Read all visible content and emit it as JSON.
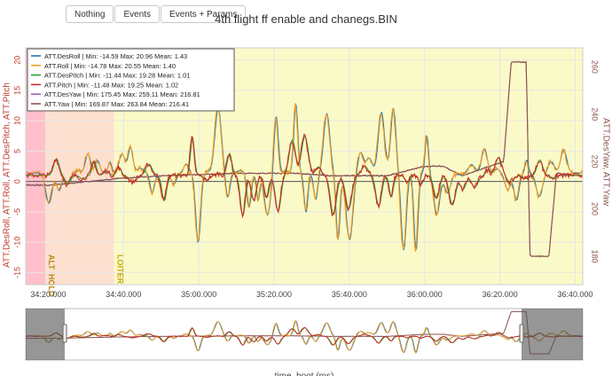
{
  "buttons": [
    "Nothing",
    "Events",
    "Events + Params"
  ],
  "chart_data": {
    "type": "line",
    "title": "4th flight ff enable and chanegs.BIN",
    "xlabel": "time_boot (ms)",
    "ylabel_left": "ATT.DesRoll, ATT.Roll, ATT.DesPitch, ATT.Pitch",
    "ylabel_right": "ATT.DesYaw, ATT.Yaw",
    "x_ticks": [
      "34:20.000",
      "34:40.000",
      "35:00.000",
      "35:20.000",
      "35:40.000",
      "36:00.000",
      "36:20.000",
      "36:40.000"
    ],
    "x_range_s": [
      2054,
      2202
    ],
    "y_left_ticks": [
      -15,
      -10,
      -5,
      0,
      5,
      10,
      15,
      20
    ],
    "y_left_range": [
      -17,
      22
    ],
    "y_right_ticks": [
      180,
      200,
      220,
      240,
      260
    ],
    "y_right_range": [
      168,
      268
    ],
    "grid": true,
    "legend_position": "top-left",
    "series": [
      {
        "name": "ATT.DesRoll | Min: -14.59    Max: 20.96    Mean: 1.43",
        "color": "#1f77b4",
        "axis": "left"
      },
      {
        "name": "ATT.Roll | Min: -14.78    Max: 20.55    Mean: 1.40",
        "color": "#ff9f1c",
        "axis": "left"
      },
      {
        "name": "ATT.DesPitch | Min: -11.44    Max: 19.28    Mean: 1.01",
        "color": "#2ca02c",
        "axis": "left"
      },
      {
        "name": "ATT.Pitch | Min: -11.48    Max: 19.25    Mean: 1.02",
        "color": "#d62728",
        "axis": "left"
      },
      {
        "name": "ATT.DesYaw | Min: 175.45    Max: 259.11    Mean: 216.81",
        "color": "#9467bd",
        "axis": "right"
      },
      {
        "name": "ATT.Yaw | Min: 169.87    Max: 263.84    Mean: 216.41",
        "color": "#8c564b",
        "axis": "right"
      }
    ],
    "modes": [
      {
        "label": "",
        "from_s": 2054,
        "to_s": 2059.2,
        "color": "#ffc0cb"
      },
      {
        "label": "ALT_HOLD",
        "from_s": 2059.2,
        "to_s": 2077.5,
        "color": "#fde0cf"
      },
      {
        "label": "LOITER",
        "from_s": 2077.5,
        "to_s": 2202,
        "color": "#fafac8"
      }
    ],
    "yaw_keypoints": [
      [
        2054,
        210
      ],
      [
        2060,
        210
      ],
      [
        2080,
        213
      ],
      [
        2090,
        214
      ],
      [
        2110,
        215
      ],
      [
        2125,
        215
      ],
      [
        2135,
        214
      ],
      [
        2150,
        214
      ],
      [
        2160,
        218
      ],
      [
        2165,
        218
      ],
      [
        2170,
        214
      ],
      [
        2181,
        220
      ],
      [
        2183,
        262
      ],
      [
        2187,
        262
      ],
      [
        2188,
        180
      ],
      [
        2193,
        180
      ],
      [
        2195,
        215
      ],
      [
        2202,
        214
      ]
    ]
  }
}
